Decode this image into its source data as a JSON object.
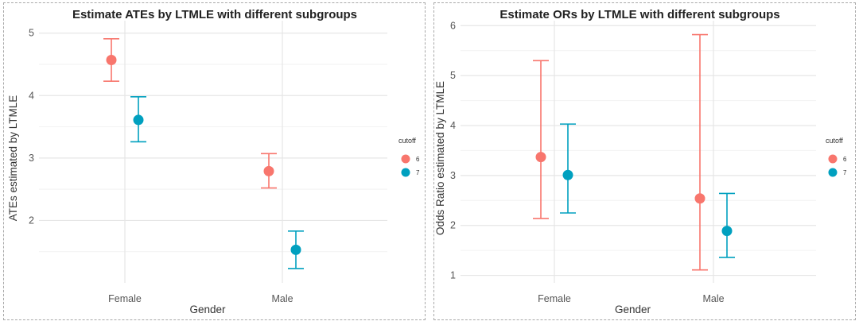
{
  "colors": {
    "cutoff6": "#F8766D",
    "cutoff7": "#00A0BF",
    "grid_major": "#e6e6e6",
    "grid_minor": "#f2f2f2"
  },
  "chart_data": [
    {
      "type": "scatter",
      "title": "Estimate ATEs by LTMLE with different subgroups",
      "xlabel": "Gender",
      "ylabel": "ATEs estimated by LTMLE",
      "categories": [
        "Female",
        "Male"
      ],
      "ylim": [
        1.0,
        5.2
      ],
      "yticks": [
        2,
        3,
        4,
        5
      ],
      "yminor": [
        1.5,
        2.5,
        3.5,
        4.5
      ],
      "legend": {
        "title": "cutoff",
        "position": "right"
      },
      "series": [
        {
          "name": "6",
          "color": "#F8766D",
          "points": [
            {
              "category": "Female",
              "y": 4.57,
              "lo": 4.23,
              "hi": 4.91
            },
            {
              "category": "Male",
              "y": 2.79,
              "lo": 2.52,
              "hi": 3.07
            }
          ]
        },
        {
          "name": "7",
          "color": "#00A0BF",
          "points": [
            {
              "category": "Female",
              "y": 3.61,
              "lo": 3.26,
              "hi": 3.98
            },
            {
              "category": "Male",
              "y": 1.53,
              "lo": 1.23,
              "hi": 1.83
            }
          ]
        }
      ]
    },
    {
      "type": "scatter",
      "title": "Estimate ORs by LTMLE with different subgroups",
      "xlabel": "Gender",
      "ylabel": "Odds Ratio estimated by LTMLE",
      "categories": [
        "Female",
        "Male"
      ],
      "ylim": [
        0.85,
        6.1
      ],
      "yticks": [
        1,
        2,
        3,
        4,
        5,
        6
      ],
      "yminor": [
        1.5,
        2.5,
        3.5,
        4.5,
        5.5
      ],
      "legend": {
        "title": "cutoff",
        "position": "right"
      },
      "series": [
        {
          "name": "6",
          "color": "#F8766D",
          "points": [
            {
              "category": "Female",
              "y": 3.37,
              "lo": 2.14,
              "hi": 5.3
            },
            {
              "category": "Male",
              "y": 2.54,
              "lo": 1.11,
              "hi": 5.82
            }
          ]
        },
        {
          "name": "7",
          "color": "#00A0BF",
          "points": [
            {
              "category": "Female",
              "y": 3.01,
              "lo": 2.25,
              "hi": 4.03
            },
            {
              "category": "Male",
              "y": 1.89,
              "lo": 1.36,
              "hi": 2.64
            }
          ]
        }
      ]
    }
  ]
}
